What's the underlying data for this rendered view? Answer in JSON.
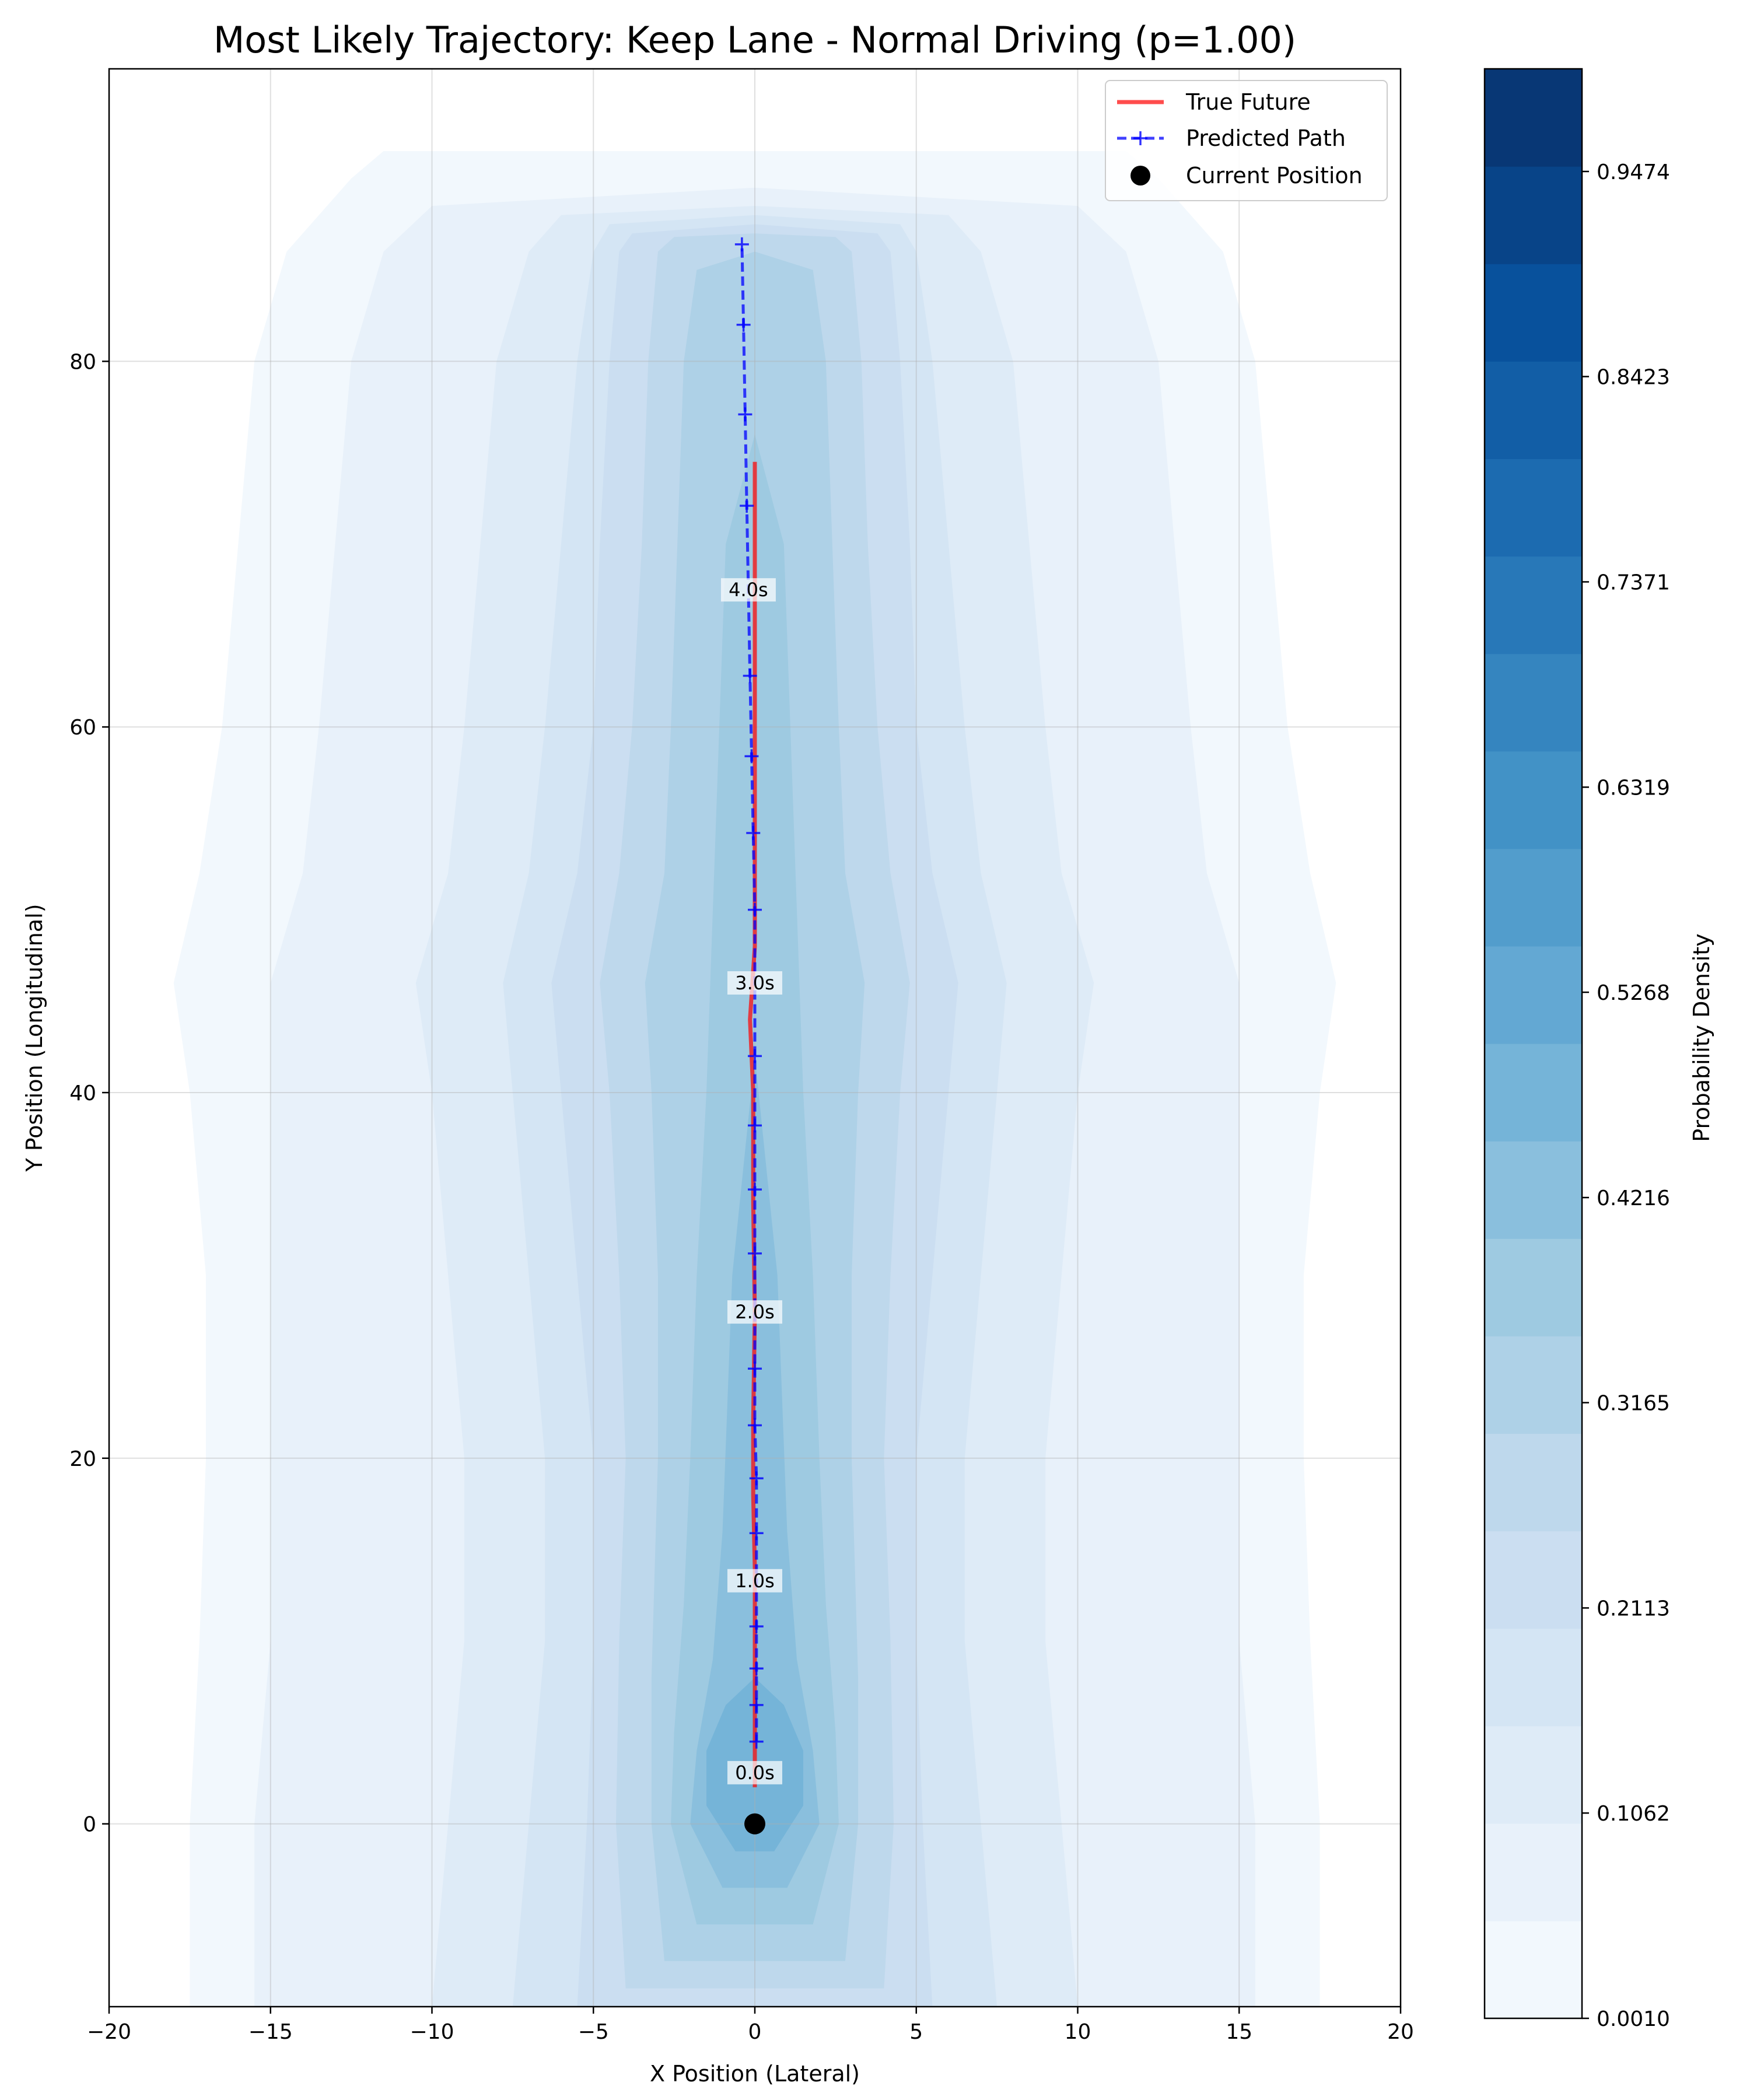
{
  "chart_data": {
    "type": "heatmap",
    "title": "Most Likely Trajectory: Keep Lane - Normal Driving (p=1.00)",
    "xlabel": "X Position (Lateral)",
    "ylabel": "Y Position (Longitudinal)",
    "xlim": [
      -20,
      20
    ],
    "ylim": [
      -10,
      96
    ],
    "xticks": [
      -20,
      -15,
      -10,
      -5,
      0,
      5,
      10,
      15,
      20
    ],
    "xtick_labels": [
      "−20",
      "−15",
      "−10",
      "−5",
      "0",
      "5",
      "10",
      "15",
      "20"
    ],
    "yticks": [
      0,
      20,
      40,
      60,
      80
    ],
    "ytick_labels": [
      "0",
      "20",
      "40",
      "60",
      "80"
    ],
    "grid": true,
    "legend_position": "top-right",
    "colormap": "Blues",
    "colorbar": {
      "label": "Probability Density",
      "min": 0.001,
      "max": 1.0,
      "levels": 20,
      "tick_values": [
        0.001,
        0.1062,
        0.2113,
        0.3165,
        0.4216,
        0.5268,
        0.6319,
        0.7371,
        0.8423,
        0.9474
      ],
      "tick_labels": [
        "0.0010",
        "0.1062",
        "0.2113",
        "0.3165",
        "0.4216",
        "0.5268",
        "0.6319",
        "0.7371",
        "0.8423",
        "0.9474"
      ]
    },
    "density_levels": [
      {
        "level": 1,
        "halfwidth": [
          17.5,
          17.5,
          17.2,
          17.0,
          17.0,
          17.5,
          18.0,
          17.2,
          16.5,
          16.0,
          15.5,
          14.5,
          12.5,
          11.5
        ],
        "y": [
          -10,
          0,
          10,
          20,
          30,
          40,
          46,
          52,
          60,
          70,
          80,
          86,
          90,
          91.5
        ]
      },
      {
        "level": 2,
        "halfwidth": [
          15.5,
          15.5,
          15.0,
          15.0,
          15.0,
          15.0,
          15.0,
          14.0,
          13.5,
          13.0,
          12.5,
          11.5,
          10.0,
          0
        ],
        "y": [
          -10,
          0,
          10,
          20,
          30,
          40,
          46,
          52,
          60,
          70,
          80,
          86,
          88.5,
          89.5
        ]
      },
      {
        "level": 3,
        "halfwidth": [
          10.0,
          9.5,
          9.0,
          9.0,
          9.5,
          10.0,
          10.5,
          9.5,
          9.0,
          8.5,
          8.0,
          7.0,
          6.0,
          0
        ],
        "y": [
          -10,
          0,
          10,
          20,
          30,
          40,
          46,
          52,
          60,
          70,
          80,
          86,
          88,
          88.5
        ]
      },
      {
        "level": 4,
        "halfwidth": [
          7.5,
          7.0,
          6.5,
          6.5,
          7.0,
          7.5,
          7.8,
          7.0,
          6.5,
          6.0,
          5.5,
          5.0,
          4.5,
          0
        ],
        "y": [
          -10,
          0,
          10,
          20,
          30,
          40,
          46,
          52,
          60,
          70,
          80,
          86,
          87.5,
          88
        ]
      },
      {
        "level": 5,
        "halfwidth": [
          5.5,
          5.2,
          5.0,
          5.0,
          5.5,
          6.0,
          6.3,
          5.5,
          5.0,
          4.8,
          4.5,
          4.2,
          3.8,
          0
        ],
        "y": [
          -10,
          0,
          10,
          20,
          30,
          40,
          46,
          52,
          60,
          70,
          80,
          86,
          87,
          87.5
        ]
      },
      {
        "level": 6,
        "halfwidth": [
          4.0,
          4.3,
          4.2,
          4.0,
          4.2,
          4.5,
          4.8,
          4.2,
          3.8,
          3.5,
          3.3,
          3.0,
          2.5,
          0
        ],
        "y": [
          -9,
          0,
          10,
          20,
          30,
          40,
          46,
          52,
          60,
          70,
          80,
          86,
          86.8,
          87
        ]
      },
      {
        "level": 7,
        "halfwidth": [
          2.8,
          3.2,
          3.2,
          3.0,
          3.0,
          3.2,
          3.4,
          2.8,
          2.6,
          2.4,
          2.2,
          1.8,
          0
        ],
        "y": [
          -7.5,
          0,
          8,
          20,
          30,
          40,
          46,
          52,
          60,
          70,
          80,
          85,
          86
        ]
      },
      {
        "level": 8,
        "halfwidth": [
          1.8,
          2.6,
          2.5,
          2.2,
          2.0,
          1.8,
          1.5,
          1.3,
          1.1,
          0.9,
          0
        ],
        "y": [
          -5.5,
          0,
          5,
          12,
          20,
          30,
          40,
          50,
          60,
          70,
          76
        ]
      },
      {
        "level": 9,
        "halfwidth": [
          1.0,
          2.0,
          1.8,
          1.3,
          1.0,
          0.7,
          0
        ],
        "y": [
          -3.5,
          0,
          4,
          9,
          16,
          30,
          42
        ]
      },
      {
        "level": 10,
        "halfwidth": [
          0.6,
          1.5,
          1.5,
          0.9,
          0
        ],
        "y": [
          -1.5,
          1,
          4,
          6.5,
          8
        ]
      }
    ],
    "series": [
      {
        "name": "True Future",
        "type": "line",
        "color": "#ff0000",
        "x": [
          0.0,
          0.0,
          0.0,
          -0.05,
          -0.05,
          0.0,
          -0.05,
          -0.05,
          -0.15,
          0.0,
          0.0,
          0.0,
          0.0,
          0.0,
          0.0,
          0.0,
          0.0
        ],
        "y": [
          2.0,
          8.0,
          14.0,
          18.0,
          22.0,
          28.0,
          34.0,
          40.0,
          44.0,
          48.0,
          52.0,
          56.0,
          60.0,
          64.0,
          68.0,
          72.0,
          74.5
        ]
      },
      {
        "name": "Predicted Path",
        "type": "line",
        "style": "dashed",
        "marker": "+",
        "color": "#0000ff",
        "x": [
          0.05,
          0.05,
          0.05,
          0.05,
          0.05,
          0.05,
          0.0,
          0.0,
          0.0,
          0.0,
          0.0,
          0.0,
          0.0,
          -0.05,
          -0.1,
          -0.15,
          -0.25,
          -0.3,
          -0.35,
          -0.4
        ],
        "y": [
          4.5,
          6.5,
          8.5,
          10.8,
          15.9,
          18.9,
          21.8,
          24.9,
          31.2,
          34.7,
          38.2,
          42.0,
          50.0,
          54.2,
          58.4,
          62.8,
          72.1,
          77.1,
          82.0,
          86.4
        ]
      },
      {
        "name": "Current Position",
        "type": "scatter",
        "color": "#000000",
        "x": [
          0.0
        ],
        "y": [
          0.0
        ]
      }
    ],
    "annotations": [
      {
        "text": "0.0s",
        "x": 0.0,
        "y": 2.8
      },
      {
        "text": "1.0s",
        "x": 0.0,
        "y": 13.3
      },
      {
        "text": "2.0s",
        "x": 0.0,
        "y": 28.0
      },
      {
        "text": "3.0s",
        "x": 0.0,
        "y": 46.0
      },
      {
        "text": "4.0s",
        "x": -0.2,
        "y": 67.5
      }
    ]
  }
}
